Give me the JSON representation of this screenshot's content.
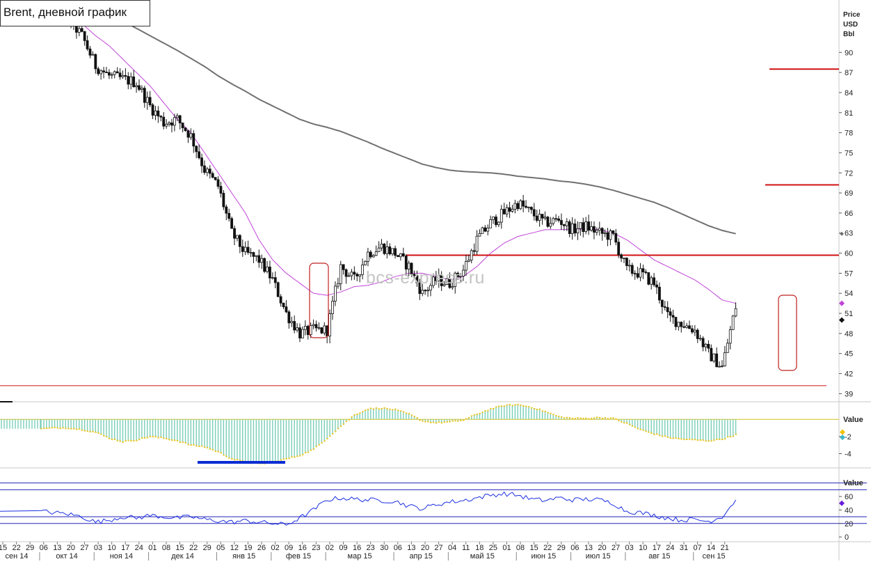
{
  "title": "Brent, дневной график",
  "watermark": "bcs-express.ru",
  "chart_data": {
    "type": "candlestick",
    "title": "Brent, дневной график",
    "price_axis_title": [
      "Price",
      "USD",
      "Bbl"
    ],
    "price_ticks": [
      "90",
      "87",
      "84",
      "81",
      "78",
      "75",
      "72",
      "69",
      "66",
      "63",
      "60",
      "57",
      "54",
      "51",
      "48",
      "45",
      "42",
      "39"
    ],
    "ylim": [
      38,
      97
    ],
    "grid": false,
    "x_day_labels": [
      "15",
      "22",
      "29",
      "06",
      "13",
      "20",
      "27",
      "03",
      "10",
      "17",
      "24",
      "01",
      "08",
      "15",
      "22",
      "29",
      "05",
      "12",
      "19",
      "26",
      "02",
      "09",
      "16",
      "23",
      "02",
      "09",
      "16",
      "23",
      "30",
      "06",
      "13",
      "20",
      "27",
      "04",
      "11",
      "18",
      "25",
      "01",
      "08",
      "15",
      "22",
      "29",
      "06",
      "13",
      "20",
      "27",
      "03",
      "10",
      "17",
      "24",
      "31",
      "07",
      "14",
      "21"
    ],
    "x_month_labels": [
      "сен 14",
      "окт 14",
      "ноя 14",
      "дек 14",
      "янв 15",
      "фев 15",
      "мар 15",
      "апр 15",
      "май 15",
      "июн 15",
      "июл 15",
      "авг 15",
      "сен 15"
    ],
    "price_weekly_closes": [
      97.0,
      96.2,
      95.0,
      92.5,
      88.0,
      86.5,
      86.0,
      85.5,
      82.0,
      79.5,
      80.0,
      77.5,
      72.5,
      70.0,
      63.0,
      60.0,
      59.0,
      56.0,
      51.0,
      48.0,
      48.5,
      48.5,
      58.0,
      56.0,
      60.0,
      61.0,
      60.0,
      58.0,
      54.0,
      56.0,
      55.5,
      57.5,
      62.0,
      64.5,
      66.0,
      67.5,
      66.0,
      64.5,
      65.0,
      63.5,
      64.0,
      63.0,
      62.5,
      57.5,
      57.0,
      55.5,
      50.5,
      49.5,
      48.5,
      45.0,
      43.0,
      52.0
    ],
    "last_price": 50.0,
    "sma_short_weekly": [
      97.0,
      96.5,
      95.5,
      94.3,
      92.5,
      91.0,
      89.0,
      87.0,
      85.0,
      82.5,
      80.0,
      78.0,
      75.0,
      72.0,
      69.0,
      66.0,
      62.0,
      59.0,
      57.0,
      55.5,
      54.0,
      53.7,
      54.2,
      55.0,
      55.2,
      55.7,
      56.5,
      57.0,
      57.0,
      56.5,
      56.0,
      56.5,
      58.0,
      60.0,
      61.5,
      62.5,
      63.0,
      63.5,
      63.5,
      63.6,
      63.6,
      63.5,
      63.0,
      62.0,
      60.5,
      59.0,
      58.0,
      57.0,
      56.0,
      54.6,
      53.0,
      52.5
    ],
    "sma_long_weekly": [
      null,
      null,
      null,
      null,
      97.0,
      96.0,
      94.7,
      93.6,
      92.5,
      91.4,
      90.3,
      89.1,
      87.9,
      86.5,
      85.3,
      84.2,
      83.0,
      82.0,
      81.0,
      80.0,
      79.3,
      78.8,
      78.2,
      77.4,
      76.6,
      75.7,
      74.9,
      74.1,
      73.3,
      72.8,
      72.4,
      72.2,
      72.1,
      72.0,
      71.8,
      71.5,
      71.3,
      71.1,
      70.8,
      70.6,
      70.3,
      69.9,
      69.4,
      68.8,
      68.2,
      67.6,
      66.8,
      65.9,
      65.0,
      64.1,
      63.4,
      62.9
    ],
    "resistance_levels": [
      87.5,
      70.2,
      59.7
    ],
    "support_level": 40.2,
    "oscillator": {
      "axis_title": "Value",
      "ticks": [
        "-2",
        "-4"
      ],
      "ylim": [
        -5.5,
        1.8
      ],
      "zero_line": 0,
      "weekly_values": [
        -1.1,
        -1.0,
        -1.0,
        -1.2,
        -1.5,
        -2.2,
        -2.6,
        -2.4,
        -2.0,
        -2.2,
        -2.5,
        -3.0,
        -3.2,
        -3.8,
        -4.6,
        -5.0,
        -5.2,
        -5.0,
        -4.6,
        -4.2,
        -3.5,
        -2.2,
        -0.8,
        0.5,
        1.2,
        1.3,
        1.1,
        0.6,
        -0.2,
        -0.4,
        -0.3,
        -0.1,
        0.6,
        1.2,
        1.6,
        1.7,
        1.4,
        0.9,
        0.3,
        0.1,
        0.1,
        0.2,
        0.1,
        -0.5,
        -1.2,
        -1.7,
        -2.1,
        -2.3,
        -2.4,
        -2.5,
        -2.3,
        -1.8
      ],
      "last_values": [
        -1.5,
        -2.1
      ],
      "marker_colors": [
        "#f2c200",
        "#3fb8c8"
      ]
    },
    "rsi": {
      "axis_title": "Value",
      "ticks": [
        "60",
        "40",
        "20",
        "0"
      ],
      "ylim": [
        -4,
        90
      ],
      "levels": [
        80,
        70,
        30,
        20
      ],
      "weekly_values": [
        38,
        36,
        34,
        30,
        22,
        25,
        30,
        28,
        32,
        30,
        28,
        30,
        26,
        24,
        22,
        24,
        22,
        20,
        18,
        28,
        40,
        55,
        58,
        56,
        55,
        54,
        53,
        46,
        42,
        48,
        52,
        54,
        58,
        62,
        64,
        62,
        56,
        54,
        58,
        55,
        56,
        55,
        50,
        38,
        36,
        32,
        28,
        25,
        26,
        23,
        30,
        55
      ],
      "last_value": 50,
      "marker_color": "#6a1ed8"
    }
  },
  "colors": {
    "candle": "#111111",
    "sma_short": "#c042d8",
    "sma_long": "#707070",
    "resistance": "#d01010",
    "support": "#d01010",
    "oscillator_bar": "#78cdb8",
    "oscillator_edge": "#e8c832",
    "oscillator_zero": "#d6c020",
    "highlight_bar": "#0a2cd4",
    "rsi_line": "#1a2ee0",
    "rsi_levels": "#2222bb",
    "price_marker": "#111111",
    "sma_marker": "#c042d8"
  }
}
